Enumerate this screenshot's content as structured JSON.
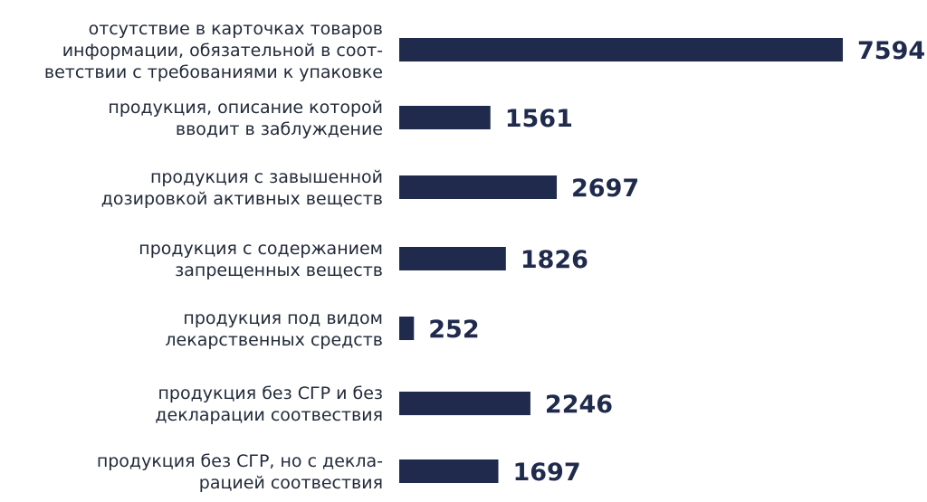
{
  "chart_data": {
    "type": "bar",
    "orientation": "horizontal",
    "title": "",
    "xlabel": "",
    "ylabel": "",
    "grid": false,
    "legend": "none",
    "bar_color": "#1f2a4d",
    "label_color": "#222a3a",
    "xlim": [
      0,
      7594
    ],
    "categories": [
      [
        "отсутствие в карточках товаров",
        "информации, обязательной в соот-",
        "ветствии с требованиями к упаковке"
      ],
      [
        "продукция, описание которой",
        "вводит в заблуждение"
      ],
      [
        "продукция с завышенной",
        "дозировкой активных веществ"
      ],
      [
        "продукция с содержанием",
        "запрещенных веществ"
      ],
      [
        "продукция под видом",
        "лекарственных средств"
      ],
      [
        "продукция без СГР и без",
        "декларации соотвествия"
      ],
      [
        "продукция без СГР, но с декла-",
        "рацией соотвествия"
      ]
    ],
    "values": [
      7594,
      1561,
      2697,
      1826,
      252,
      2246,
      1697
    ],
    "value_labels": [
      "7594",
      "1561",
      "2697",
      "1826",
      "252",
      "2246",
      "1697"
    ]
  }
}
